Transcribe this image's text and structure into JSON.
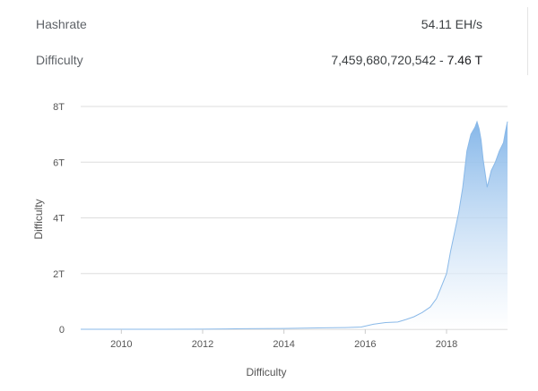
{
  "stats": {
    "hashrate_label": "Hashrate",
    "hashrate_value": "54.11 EH/s",
    "difficulty_label": "Difficulty",
    "difficulty_value_full": "7,459,680,720,542",
    "difficulty_separator": " - ",
    "difficulty_value_short": "7.46 T"
  },
  "chart_data": {
    "type": "area",
    "title": "",
    "xlabel": "Difficulty",
    "ylabel": "Difficulty",
    "xlim": [
      2009.0,
      2019.5
    ],
    "ylim": [
      0,
      8
    ],
    "y_unit": "T",
    "x_ticks": [
      2010,
      2012,
      2014,
      2016,
      2018
    ],
    "x_tick_labels": [
      "2010",
      "2012",
      "2014",
      "2016",
      "2018"
    ],
    "y_ticks": [
      0,
      2,
      4,
      6,
      8
    ],
    "y_tick_labels": [
      "0",
      "2T",
      "4T",
      "6T",
      "8T"
    ],
    "grid": true,
    "legend": "none",
    "colors": {
      "fill_top": "#7fb3e8",
      "fill_bottom": "#ffffff",
      "line": "#8ab9e8",
      "grid": "#dddddd"
    },
    "series": [
      {
        "x": [
          2009.0,
          2010.0,
          2011.0,
          2012.0,
          2013.0,
          2014.0,
          2014.5,
          2015.0,
          2015.5,
          2015.9,
          2016.2,
          2016.5,
          2016.8,
          2017.0,
          2017.2,
          2017.4,
          2017.6,
          2017.75,
          2017.85,
          2018.0,
          2018.1,
          2018.2,
          2018.3,
          2018.4,
          2018.5,
          2018.6,
          2018.7,
          2018.75,
          2018.8,
          2018.85,
          2018.9,
          2019.0,
          2019.05,
          2019.1,
          2019.2,
          2019.3,
          2019.4,
          2019.45,
          2019.5
        ],
        "values": [
          0,
          0,
          0.001,
          0.003,
          0.02,
          0.03,
          0.04,
          0.05,
          0.06,
          0.08,
          0.18,
          0.24,
          0.26,
          0.35,
          0.45,
          0.6,
          0.8,
          1.1,
          1.45,
          2.0,
          2.8,
          3.5,
          4.2,
          5.1,
          6.4,
          7.0,
          7.25,
          7.45,
          7.2,
          6.8,
          6.1,
          5.1,
          5.4,
          5.7,
          6.0,
          6.4,
          6.7,
          7.1,
          7.46
        ]
      }
    ]
  }
}
